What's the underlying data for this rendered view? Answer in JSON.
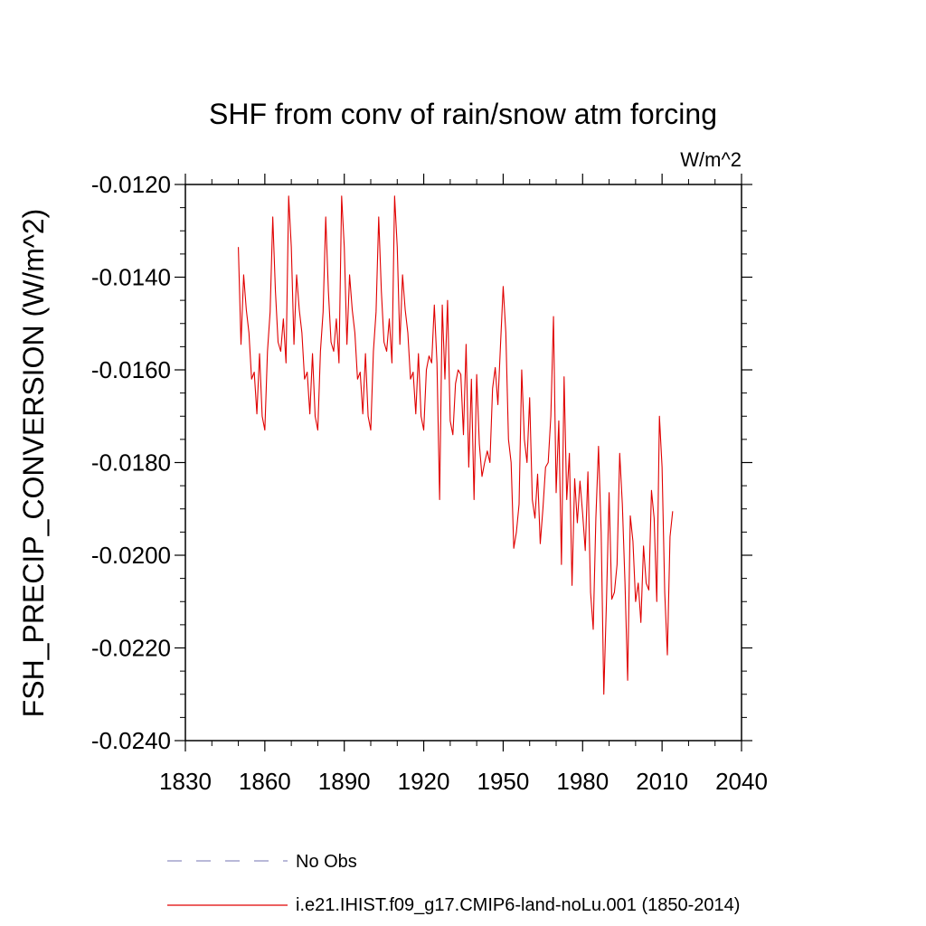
{
  "chart_data": {
    "type": "line",
    "title": "SHF from conv of rain/snow atm forcing",
    "units": "W/m^2",
    "ylabel": "FSH_PRECIP_CONVERSION  (W/m^2)",
    "xlabel": "",
    "xlim": [
      1830,
      2040
    ],
    "ylim": [
      -0.024,
      -0.012
    ],
    "xticks": [
      1830,
      1860,
      1890,
      1920,
      1950,
      1980,
      2010,
      2040
    ],
    "yticks": [
      -0.024,
      -0.022,
      -0.02,
      -0.018,
      -0.016,
      -0.014,
      -0.012
    ],
    "ytick_labels": [
      "-0.0240",
      "-0.0220",
      "-0.0200",
      "-0.0180",
      "-0.0160",
      "-0.0140",
      "-0.0120"
    ],
    "grid": false,
    "legend": {
      "placement": "bottom",
      "entries": [
        {
          "label": "No Obs",
          "color": "#8f8fc0",
          "style": "dashed"
        },
        {
          "label": "i.e21.IHIST.f09_g17.CMIP6-land-noLu.001 (1850-2014)",
          "color": "#e00000",
          "style": "solid"
        }
      ]
    },
    "series": [
      {
        "name": "i.e21.IHIST.f09_g17.CMIP6-land-noLu.001 (1850-2014)",
        "color": "#e00000",
        "x_start": 1850,
        "x_step": 1,
        "values": [
          -0.01335,
          -0.01545,
          -0.01395,
          -0.0147,
          -0.0152,
          -0.0162,
          -0.01605,
          -0.01695,
          -0.01565,
          -0.017,
          -0.0173,
          -0.0156,
          -0.01475,
          -0.0127,
          -0.0143,
          -0.0154,
          -0.0156,
          -0.0149,
          -0.01585,
          -0.01225,
          -0.01335,
          -0.01545,
          -0.01395,
          -0.0147,
          -0.0152,
          -0.0162,
          -0.01605,
          -0.01695,
          -0.01565,
          -0.017,
          -0.0173,
          -0.0156,
          -0.01475,
          -0.0127,
          -0.0143,
          -0.0154,
          -0.0156,
          -0.0149,
          -0.01585,
          -0.01225,
          -0.01335,
          -0.01545,
          -0.01395,
          -0.0147,
          -0.0152,
          -0.0162,
          -0.01605,
          -0.01695,
          -0.01565,
          -0.017,
          -0.0173,
          -0.0156,
          -0.01475,
          -0.0127,
          -0.0143,
          -0.0154,
          -0.0156,
          -0.0149,
          -0.01585,
          -0.01225,
          -0.01335,
          -0.01545,
          -0.01395,
          -0.0147,
          -0.0152,
          -0.0162,
          -0.01605,
          -0.01695,
          -0.01565,
          -0.017,
          -0.0173,
          -0.016,
          -0.0157,
          -0.01585,
          -0.0146,
          -0.01585,
          -0.0188,
          -0.0146,
          -0.0162,
          -0.0145,
          -0.0171,
          -0.0174,
          -0.0163,
          -0.016,
          -0.0161,
          -0.0174,
          -0.01545,
          -0.0181,
          -0.0162,
          -0.0188,
          -0.0161,
          -0.0176,
          -0.0183,
          -0.018,
          -0.01775,
          -0.018,
          -0.0164,
          -0.01595,
          -0.01675,
          -0.01545,
          -0.0142,
          -0.0152,
          -0.0175,
          -0.018,
          -0.01985,
          -0.0195,
          -0.0189,
          -0.016,
          -0.0175,
          -0.018,
          -0.0166,
          -0.0188,
          -0.0192,
          -0.01825,
          -0.01975,
          -0.019,
          -0.0181,
          -0.018,
          -0.017,
          -0.01485,
          -0.01865,
          -0.0171,
          -0.0202,
          -0.01615,
          -0.0188,
          -0.0178,
          -0.02065,
          -0.01835,
          -0.0193,
          -0.0184,
          -0.0191,
          -0.0199,
          -0.0182,
          -0.0208,
          -0.0216,
          -0.0192,
          -0.01765,
          -0.0195,
          -0.023,
          -0.021,
          -0.01865,
          -0.02095,
          -0.0208,
          -0.0202,
          -0.0178,
          -0.0189,
          -0.0206,
          -0.0227,
          -0.01915,
          -0.0197,
          -0.021,
          -0.0206,
          -0.02145,
          -0.0198,
          -0.0206,
          -0.02075,
          -0.0186,
          -0.0192,
          -0.021,
          -0.017,
          -0.0181,
          -0.0208,
          -0.02215,
          -0.0196,
          -0.01905
        ]
      }
    ]
  }
}
